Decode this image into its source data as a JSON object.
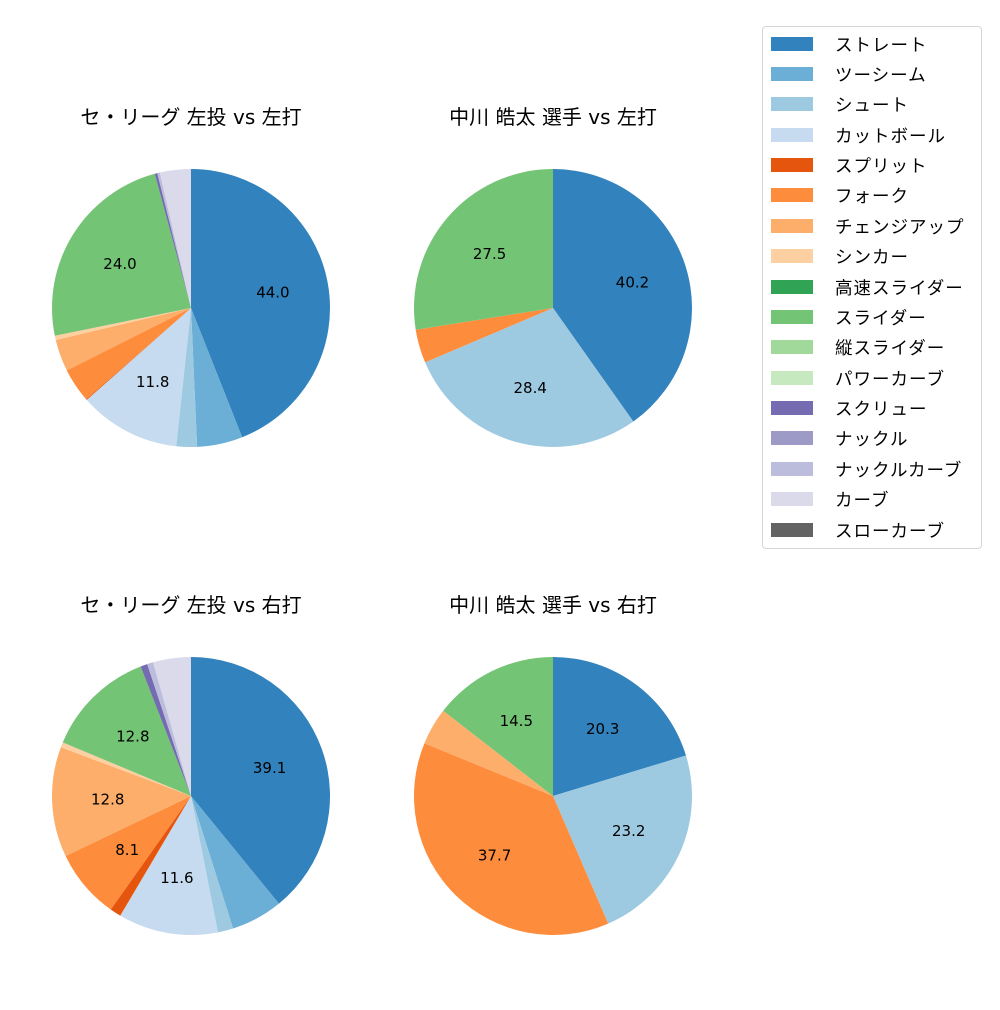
{
  "legend": {
    "items": [
      {
        "label": "ストレート",
        "color": "#3182bd"
      },
      {
        "label": "ツーシーム",
        "color": "#6baed6"
      },
      {
        "label": "シュート",
        "color": "#9ecae1"
      },
      {
        "label": "カットボール",
        "color": "#c6dbef"
      },
      {
        "label": "スプリット",
        "color": "#e6550d"
      },
      {
        "label": "フォーク",
        "color": "#fd8d3c"
      },
      {
        "label": "チェンジアップ",
        "color": "#fdae6b"
      },
      {
        "label": "シンカー",
        "color": "#fdd0a2"
      },
      {
        "label": "高速スライダー",
        "color": "#31a354"
      },
      {
        "label": "スライダー",
        "color": "#74c476"
      },
      {
        "label": "縦スライダー",
        "color": "#a1d99b"
      },
      {
        "label": "パワーカーブ",
        "color": "#c7e9c0"
      },
      {
        "label": "スクリュー",
        "color": "#756bb1"
      },
      {
        "label": "ナックル",
        "color": "#9e9ac8"
      },
      {
        "label": "ナックルカーブ",
        "color": "#bcbddc"
      },
      {
        "label": "カーブ",
        "color": "#dadaeb"
      },
      {
        "label": "スローカーブ",
        "color": "#636363"
      }
    ]
  },
  "chart_data": [
    {
      "type": "pie",
      "title": "セ・リーグ 左投 vs 左打",
      "start_angle": 90,
      "direction": "clockwise",
      "categories": [
        "ストレート",
        "ツーシーム",
        "シュート",
        "カットボール",
        "スプリット",
        "フォーク",
        "チェンジアップ",
        "シンカー",
        "スライダー",
        "スクリュー",
        "ナックルカーブ",
        "カーブ"
      ],
      "values": [
        44.0,
        5.3,
        2.4,
        11.8,
        0.1,
        4.0,
        3.7,
        0.5,
        24.0,
        0.3,
        0.3,
        3.6
      ],
      "labels_shown": {
        "ストレート": "44.0",
        "カットボール": "11.8",
        "スライダー": "24.0"
      }
    },
    {
      "type": "pie",
      "title": "中川 皓太 選手 vs 左打",
      "start_angle": 90,
      "direction": "clockwise",
      "categories": [
        "ストレート",
        "シュート",
        "フォーク",
        "スライダー"
      ],
      "values": [
        40.2,
        28.4,
        3.9,
        27.5
      ],
      "labels_shown": {
        "ストレート": "40.2",
        "シュート": "28.4",
        "スライダー": "27.5"
      }
    },
    {
      "type": "pie",
      "title": "セ・リーグ 左投 vs 右打",
      "start_angle": 90,
      "direction": "clockwise",
      "categories": [
        "ストレート",
        "ツーシーム",
        "シュート",
        "カットボール",
        "スプリット",
        "フォーク",
        "チェンジアップ",
        "シンカー",
        "スライダー",
        "スクリュー",
        "ナックルカーブ",
        "カーブ"
      ],
      "values": [
        39.1,
        6.0,
        1.8,
        11.6,
        1.3,
        8.1,
        12.8,
        0.6,
        12.8,
        0.8,
        0.7,
        4.4
      ],
      "labels_shown": {
        "ストレート": "39.1",
        "カットボール": "11.6",
        "フォーク": "8.1",
        "チェンジアップ": "12.8",
        "スライダー": "12.8"
      }
    },
    {
      "type": "pie",
      "title": "中川 皓太 選手 vs 右打",
      "start_angle": 90,
      "direction": "clockwise",
      "categories": [
        "ストレート",
        "シュート",
        "フォーク",
        "チェンジアップ",
        "スライダー"
      ],
      "values": [
        20.3,
        23.2,
        37.7,
        4.3,
        14.5
      ],
      "labels_shown": {
        "ストレート": "20.3",
        "シュート": "23.2",
        "フォーク": "37.7",
        "スライダー": "14.5"
      }
    }
  ],
  "panels": [
    {
      "title": "セ・リーグ 左投 vs 左打"
    },
    {
      "title": "中川 皓太 選手 vs 左打"
    },
    {
      "title": "セ・リーグ 左投 vs 右打"
    },
    {
      "title": "中川 皓太 選手 vs 右打"
    }
  ]
}
